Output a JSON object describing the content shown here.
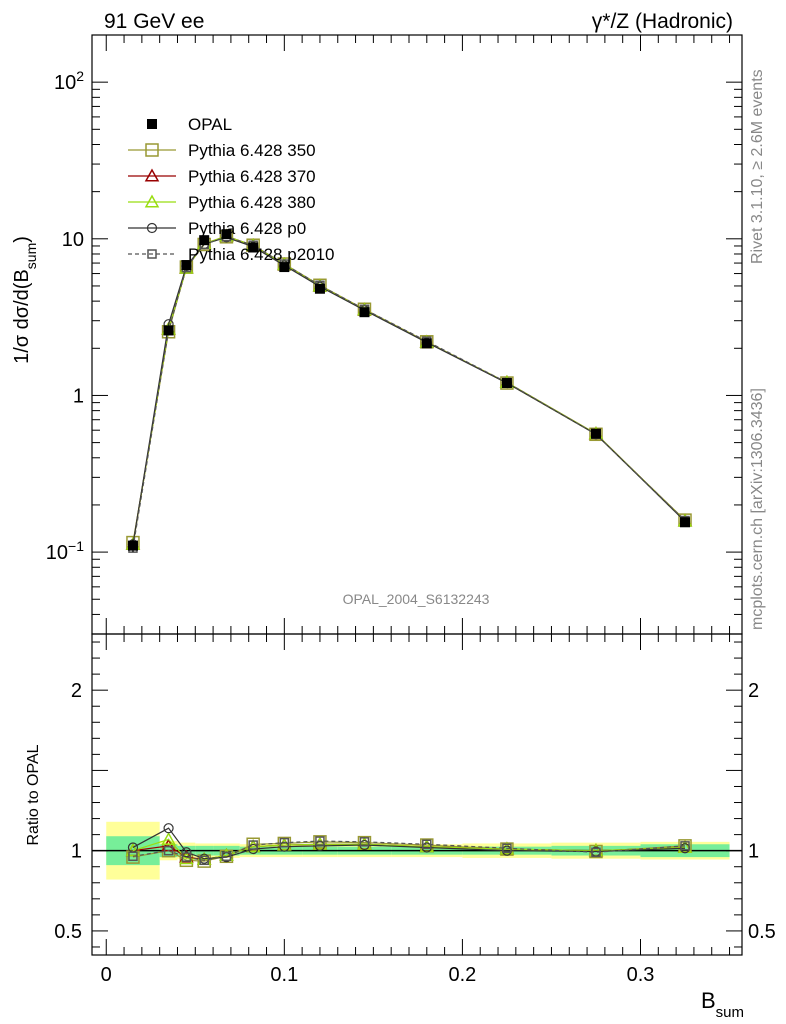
{
  "header": {
    "left": "91 GeV ee",
    "right": "γ*/Z (Hadronic)"
  },
  "side_texts": {
    "rivet": "Rivet 3.1.10, ≥ 2.6M events",
    "mcplots": "mcplots.cern.ch [arXiv:1306.3436]"
  },
  "watermark": "OPAL_2004_S6132243",
  "chart_data": [
    {
      "type": "line",
      "ylabel": "1/σ dσ/d(B",
      "ylabel_sub": "sum",
      "ylabel_close": ")",
      "yscale": "log",
      "ylim": [
        0.03,
        200
      ],
      "xlim": [
        -0.008,
        0.357
      ],
      "y_ticks": [
        {
          "value": 0.1,
          "base": "10",
          "exp": "−1"
        },
        {
          "value": 1,
          "base": "1",
          "exp": ""
        },
        {
          "value": 10,
          "base": "10",
          "exp": ""
        },
        {
          "value": 100,
          "base": "10",
          "exp": "2"
        }
      ],
      "x": [
        0.015,
        0.035,
        0.045,
        0.055,
        0.0675,
        0.0825,
        0.1,
        0.12,
        0.145,
        0.18,
        0.225,
        0.275,
        0.325
      ],
      "data": {
        "name": "OPAL",
        "values": [
          0.11,
          2.6,
          6.8,
          9.8,
          10.7,
          8.8,
          6.6,
          4.8,
          3.4,
          2.15,
          1.2,
          0.57,
          0.155
        ],
        "errors": [
          0.01,
          0.1,
          0.2,
          0.3,
          0.3,
          0.25,
          0.2,
          0.15,
          0.1,
          0.06,
          0.04,
          0.02,
          0.008
        ]
      },
      "series": [
        {
          "name": "Pythia 6.428 350",
          "marker": "square-open",
          "color": "#999933",
          "dash": false,
          "values": [
            0.115,
            2.55,
            6.6,
            9.2,
            10.3,
            9.1,
            6.9,
            5.05,
            3.55,
            2.2,
            1.2,
            0.565,
            0.16
          ]
        },
        {
          "name": "Pythia 6.428 370",
          "marker": "triangle-open",
          "color": "#990000",
          "dash": false,
          "values": [
            0.112,
            2.65,
            6.5,
            9.3,
            10.4,
            9.05,
            6.85,
            5.0,
            3.52,
            2.19,
            1.21,
            0.57,
            0.158
          ]
        },
        {
          "name": "Pythia 6.428 380",
          "marker": "triangle-open",
          "color": "#99dd11",
          "dash": false,
          "values": [
            0.112,
            2.65,
            6.5,
            9.3,
            10.4,
            9.05,
            6.85,
            5.0,
            3.52,
            2.19,
            1.21,
            0.57,
            0.158
          ]
        },
        {
          "name": "Pythia 6.428 p0",
          "marker": "circle-open",
          "color": "#333333",
          "dash": false,
          "values": [
            0.112,
            2.85,
            6.7,
            9.25,
            10.2,
            8.9,
            6.75,
            4.95,
            3.5,
            2.18,
            1.2,
            0.565,
            0.157
          ]
        },
        {
          "name": "Pythia 6.428 p2010",
          "marker": "square-open-small",
          "color": "#555555",
          "dash": true,
          "values": [
            0.106,
            2.6,
            6.55,
            9.2,
            10.3,
            9.1,
            6.9,
            5.05,
            3.55,
            2.22,
            1.21,
            0.565,
            0.159
          ]
        }
      ]
    },
    {
      "type": "line",
      "ylabel": "Ratio to OPAL",
      "xlabel": "B",
      "xlabel_sub": "sum",
      "ylim": [
        0.35,
        2.35
      ],
      "xlim": [
        -0.008,
        0.357
      ],
      "y_ticks": [
        {
          "value": 0.5,
          "label": "0.5"
        },
        {
          "value": 1,
          "label": "1"
        },
        {
          "value": 2,
          "label": "2"
        }
      ],
      "x_ticks": [
        {
          "value": 0,
          "label": "0"
        },
        {
          "value": 0.1,
          "label": "0.1"
        },
        {
          "value": 0.2,
          "label": "0.2"
        },
        {
          "value": 0.3,
          "label": "0.3"
        }
      ],
      "bins": [
        0,
        0.03,
        0.04,
        0.05,
        0.06,
        0.075,
        0.09,
        0.11,
        0.13,
        0.16,
        0.2,
        0.25,
        0.3,
        0.35
      ],
      "stat_band": [
        0.09,
        0.04,
        0.03,
        0.03,
        0.03,
        0.025,
        0.025,
        0.025,
        0.025,
        0.025,
        0.025,
        0.03,
        0.04
      ],
      "total_band": [
        0.18,
        0.06,
        0.05,
        0.045,
        0.045,
        0.04,
        0.04,
        0.04,
        0.04,
        0.04,
        0.045,
        0.05,
        0.055
      ],
      "x": [
        0.015,
        0.035,
        0.045,
        0.055,
        0.0675,
        0.0825,
        0.1,
        0.12,
        0.145,
        0.18,
        0.225,
        0.275,
        0.325
      ],
      "series": [
        {
          "name": "Pythia 6.428 350",
          "values": [
            0.96,
            1.0,
            0.94,
            0.935,
            0.965,
            1.04,
            1.045,
            1.055,
            1.05,
            1.035,
            1.01,
            0.995,
            1.03
          ]
        },
        {
          "name": "Pythia 6.428 370",
          "values": [
            1.0,
            1.03,
            0.96,
            0.945,
            0.97,
            1.025,
            1.035,
            1.04,
            1.04,
            1.025,
            1.01,
            1.0,
            1.02
          ]
        },
        {
          "name": "Pythia 6.428 380",
          "values": [
            1.0,
            1.07,
            0.95,
            0.945,
            0.97,
            1.025,
            1.035,
            1.04,
            1.04,
            1.025,
            1.01,
            1.0,
            1.02
          ]
        },
        {
          "name": "Pythia 6.428 p0",
          "values": [
            1.02,
            1.14,
            0.99,
            0.95,
            0.96,
            1.01,
            1.025,
            1.03,
            1.035,
            1.02,
            1.0,
            0.995,
            1.015
          ]
        },
        {
          "name": "Pythia 6.428 p2010",
          "values": [
            0.965,
            1.0,
            0.96,
            0.94,
            0.965,
            1.035,
            1.05,
            1.06,
            1.055,
            1.04,
            1.015,
            0.99,
            1.03
          ]
        }
      ]
    }
  ],
  "legend": [
    {
      "label": "OPAL"
    },
    {
      "label": "Pythia 6.428 350"
    },
    {
      "label": "Pythia 6.428 370"
    },
    {
      "label": "Pythia 6.428 380"
    },
    {
      "label": "Pythia 6.428 p0"
    },
    {
      "label": "Pythia 6.428 p2010"
    }
  ]
}
